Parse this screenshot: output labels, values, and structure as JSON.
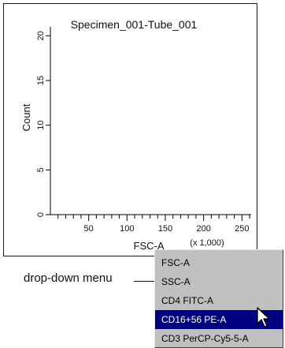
{
  "chart_data": {
    "type": "histogram",
    "title": "Specimen_001-Tube_001",
    "xlabel": "FSC-A",
    "xscale_note": "(x 1,000)",
    "ylabel": "Count",
    "xlim": [
      0,
      262
    ],
    "ylim": [
      0,
      21
    ],
    "x_ticks": [
      50,
      100,
      150,
      200,
      250
    ],
    "x_minor_step": 10,
    "y_ticks": [
      0,
      5,
      10,
      15,
      20
    ],
    "x_tick_labels": [
      "50",
      "100",
      "150",
      "200",
      "250"
    ],
    "y_tick_labels": [
      "0",
      "5",
      "10",
      "15",
      "20"
    ],
    "series": []
  },
  "dropdown": {
    "items": [
      "FSC-A",
      "SSC-A",
      "CD4 FITC-A",
      "CD16+56 PE-A",
      "CD3 PerCP-Cy5-5-A"
    ],
    "selected_index": 3
  },
  "annotation": {
    "label": "drop-down menu"
  }
}
